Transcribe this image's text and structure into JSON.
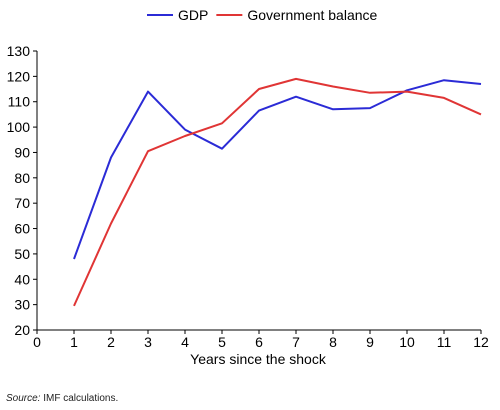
{
  "chart_data": {
    "type": "line",
    "title": "",
    "xlabel": "Years since the shock",
    "ylabel": "",
    "x": [
      1,
      2,
      3,
      4,
      5,
      6,
      7,
      8,
      9,
      10,
      11,
      12
    ],
    "xlim": [
      0,
      12
    ],
    "ylim": [
      20,
      130
    ],
    "xticks": [
      "0",
      "1",
      "2",
      "3",
      "4",
      "5",
      "6",
      "7",
      "8",
      "9",
      "10",
      "11",
      "12"
    ],
    "yticks": [
      "20",
      "30",
      "40",
      "50",
      "60",
      "70",
      "80",
      "90",
      "100",
      "110",
      "120",
      "130"
    ],
    "grid": false,
    "legend_position": "top-center",
    "series": [
      {
        "name": "GDP",
        "color": "#2b2bd6",
        "values": [
          48,
          88,
          114,
          99,
          91.5,
          106.5,
          112,
          107,
          107.5,
          114.5,
          118.5,
          117
        ]
      },
      {
        "name": "Government balance",
        "color": "#e03535",
        "values": [
          29.5,
          62,
          90.5,
          96.5,
          101.5,
          115,
          119,
          116,
          113.5,
          114,
          111.5,
          105
        ]
      }
    ]
  },
  "source": {
    "prefix": "Source:",
    "text": " IMF calculations."
  }
}
